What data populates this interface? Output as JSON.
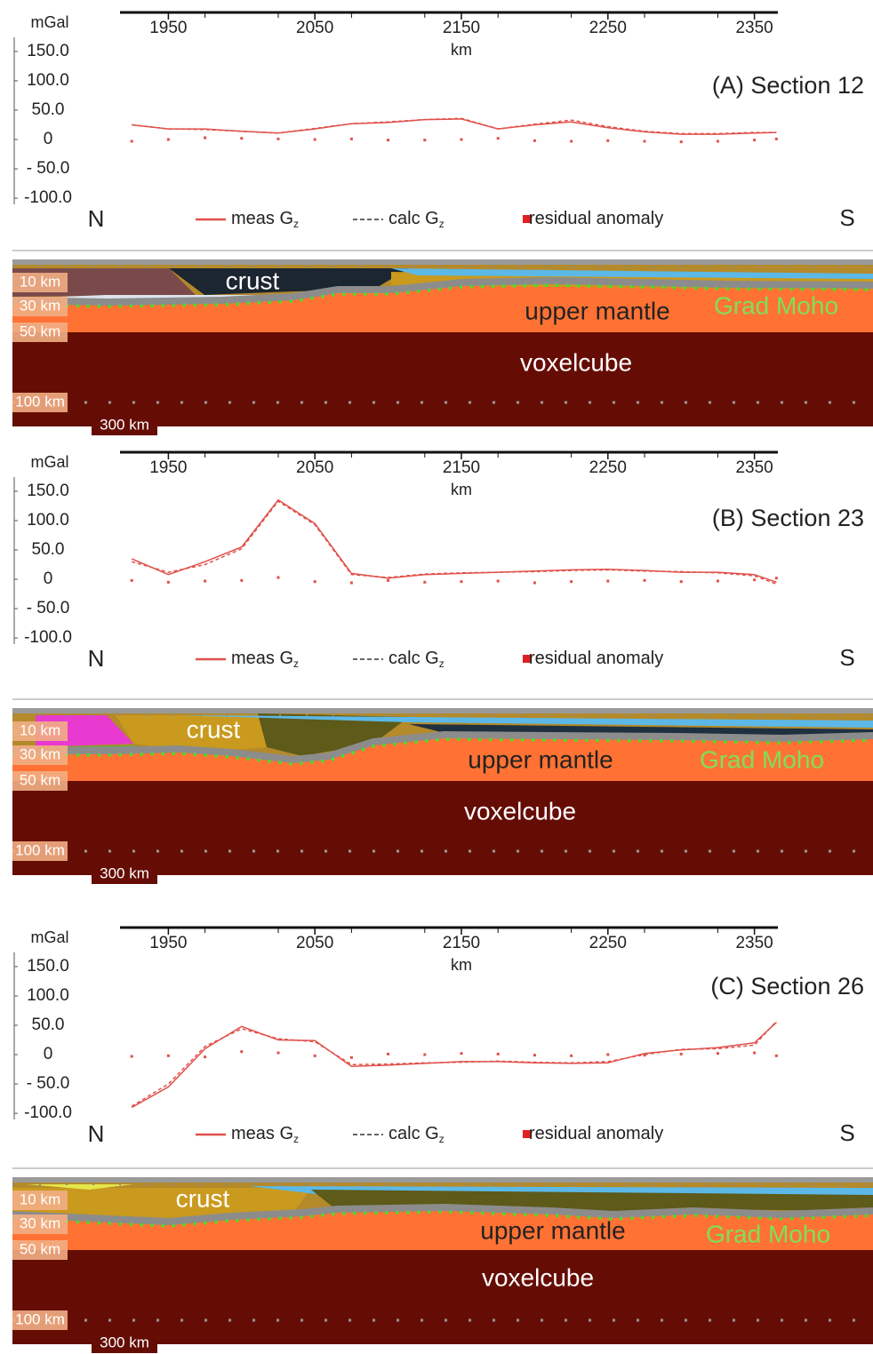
{
  "chart_data": [
    {
      "type": "line",
      "title": "(A) Section 12",
      "y_label": "mGal",
      "x_label": "km",
      "left_label": "N",
      "right_label": "S",
      "xlim": [
        1917,
        2366
      ],
      "xticks": [
        1950,
        2050,
        2150,
        2250,
        2350
      ],
      "ylim": [
        -115,
        165
      ],
      "yticks": [
        {
          "value": 150,
          "label": "150.0"
        },
        {
          "value": 100,
          "label": "100.0"
        },
        {
          "value": 50,
          "label": "50.0"
        },
        0,
        {
          "value": -50,
          "label": "- 50.0"
        },
        {
          "value": -100,
          "label": "-100.0"
        }
      ],
      "x": [
        1925,
        1950,
        1975,
        2000,
        2025,
        2050,
        2075,
        2100,
        2125,
        2150,
        2175,
        2200,
        2225,
        2250,
        2275,
        2300,
        2325,
        2350,
        2365
      ],
      "series": [
        {
          "name": "meas G",
          "subscript": "z",
          "color": "#e0504a",
          "style": "solid",
          "values": [
            25,
            18,
            18,
            14,
            11,
            18,
            27,
            29,
            34,
            35,
            18,
            25,
            30,
            20,
            13,
            9,
            9,
            11,
            12
          ]
        },
        {
          "name": "calc G",
          "subscript": "z",
          "color": "#e0504a",
          "style": "dashed",
          "values": [
            25,
            18,
            17,
            14,
            11,
            19,
            27,
            30,
            34,
            36,
            18,
            26,
            33,
            22,
            14,
            10,
            10,
            12,
            12
          ]
        },
        {
          "name": "residual anomaly",
          "color": "#e0504a",
          "style": "dots",
          "values": [
            -3,
            0,
            3,
            2,
            1,
            0,
            1,
            -1,
            -1,
            0,
            2,
            -2,
            -3,
            -2,
            -3,
            -4,
            -3,
            -1,
            1
          ]
        }
      ],
      "section_labels": [
        "crust",
        "upper mantle",
        "Grad Moho",
        "voxelcube"
      ],
      "depth_labels": [
        "10 km",
        "30 km",
        "50 km",
        "100 km",
        "300 km"
      ]
    },
    {
      "type": "line",
      "title": "(B) Section 23",
      "y_label": "mGal",
      "x_label": "km",
      "left_label": "N",
      "right_label": "S",
      "xlim": [
        1917,
        2366
      ],
      "xticks": [
        1950,
        2050,
        2150,
        2250,
        2350
      ],
      "ylim": [
        -115,
        165
      ],
      "yticks": [
        {
          "value": 150,
          "label": "150.0"
        },
        {
          "value": 100,
          "label": "100.0"
        },
        {
          "value": 50,
          "label": "50.0"
        },
        0,
        {
          "value": -50,
          "label": "- 50.0"
        },
        {
          "value": -100,
          "label": "-100.0"
        }
      ],
      "x": [
        1925,
        1950,
        1975,
        2000,
        2025,
        2050,
        2075,
        2100,
        2125,
        2150,
        2175,
        2200,
        2225,
        2250,
        2275,
        2300,
        2325,
        2350,
        2365
      ],
      "series": [
        {
          "name": "meas G",
          "subscript": "z",
          "color": "#e0504a",
          "style": "solid",
          "values": [
            35,
            8,
            30,
            55,
            135,
            95,
            10,
            2,
            8,
            10,
            12,
            14,
            16,
            17,
            15,
            12,
            12,
            8,
            -5
          ]
        },
        {
          "name": "calc G",
          "subscript": "z",
          "color": "#e0504a",
          "style": "dashed",
          "values": [
            30,
            12,
            25,
            52,
            133,
            93,
            8,
            3,
            9,
            11,
            12,
            13,
            15,
            16,
            14,
            13,
            11,
            6,
            -8
          ]
        },
        {
          "name": "residual anomaly",
          "color": "#e0504a",
          "style": "dots",
          "values": [
            -2,
            -5,
            -3,
            -2,
            3,
            -4,
            -6,
            -2,
            -5,
            -4,
            -3,
            -6,
            -4,
            -3,
            -2,
            -4,
            -3,
            -1,
            2
          ]
        }
      ],
      "section_labels": [
        "crust",
        "upper mantle",
        "Grad Moho",
        "voxelcube"
      ],
      "depth_labels": [
        "10 km",
        "30 km",
        "50 km",
        "100 km",
        "300 km"
      ]
    },
    {
      "type": "line",
      "title": "(C) Section 26",
      "y_label": "mGal",
      "x_label": "km",
      "left_label": "N",
      "right_label": "S",
      "xlim": [
        1917,
        2366
      ],
      "xticks": [
        1950,
        2050,
        2150,
        2250,
        2350
      ],
      "ylim": [
        -115,
        165
      ],
      "yticks": [
        {
          "value": 150,
          "label": "150.0"
        },
        {
          "value": 100,
          "label": "100.0"
        },
        {
          "value": 50,
          "label": "50.0"
        },
        0,
        {
          "value": -50,
          "label": "- 50.0"
        },
        {
          "value": -100,
          "label": "-100.0"
        }
      ],
      "x": [
        1925,
        1950,
        1975,
        2000,
        2025,
        2050,
        2075,
        2100,
        2125,
        2150,
        2175,
        2200,
        2225,
        2250,
        2275,
        2300,
        2325,
        2350,
        2365
      ],
      "series": [
        {
          "name": "meas G",
          "subscript": "z",
          "color": "#e0504a",
          "style": "solid",
          "values": [
            -90,
            -55,
            10,
            48,
            25,
            24,
            -20,
            -18,
            -15,
            -12,
            -12,
            -14,
            -15,
            -14,
            2,
            8,
            12,
            20,
            55
          ]
        },
        {
          "name": "calc G",
          "subscript": "z",
          "color": "#e0504a",
          "style": "dashed",
          "values": [
            -88,
            -50,
            14,
            44,
            27,
            22,
            -17,
            -16,
            -14,
            -13,
            -11,
            -13,
            -14,
            -12,
            0,
            9,
            10,
            16,
            57
          ]
        },
        {
          "name": "residual anomaly",
          "color": "#e0504a",
          "style": "dots",
          "values": [
            -3,
            -2,
            -4,
            5,
            3,
            -2,
            -5,
            1,
            0,
            2,
            1,
            -1,
            -2,
            0,
            -1,
            1,
            2,
            3,
            -2
          ]
        }
      ],
      "section_labels": [
        "crust",
        "upper mantle",
        "Grad Moho",
        "voxelcube"
      ],
      "depth_labels": [
        "10 km",
        "30 km",
        "50 km",
        "100 km",
        "300 km"
      ]
    }
  ]
}
